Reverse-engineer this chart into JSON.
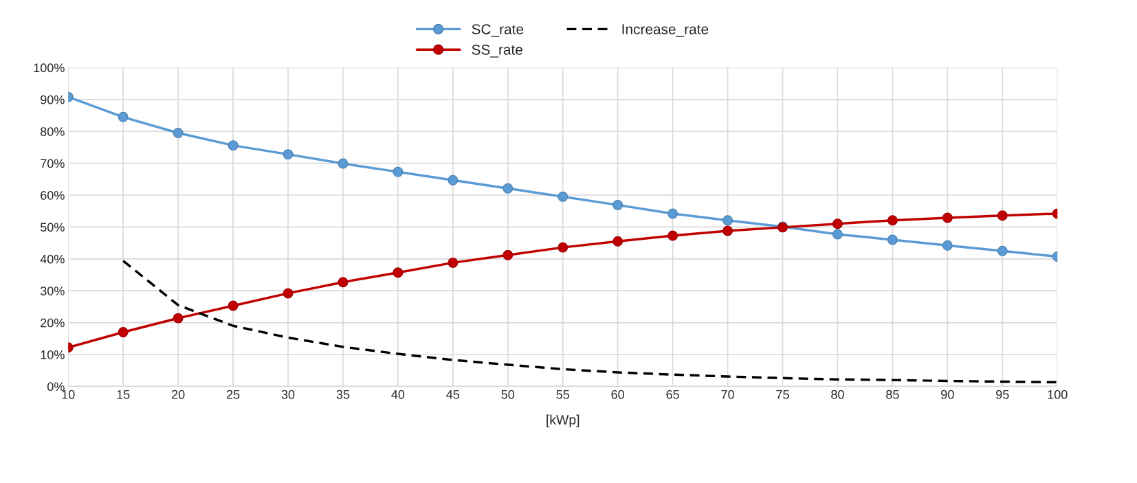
{
  "chart_data": {
    "type": "line",
    "xlabel": "[kWp]",
    "categories": [
      "10",
      "15",
      "20",
      "25",
      "30",
      "35",
      "40",
      "45",
      "50",
      "55",
      "60",
      "65",
      "70",
      "75",
      "80",
      "85",
      "90",
      "95",
      "100"
    ],
    "series": [
      {
        "name": "SC_rate",
        "color": "#5b9bd5",
        "marker": "circle",
        "line_style": "solid",
        "values": [
          90.8,
          84.5,
          79.5,
          75.6,
          72.8,
          69.9,
          67.3,
          64.7,
          62.1,
          59.5,
          56.9,
          54.2,
          52.1,
          50.1,
          47.7,
          46.0,
          44.2,
          42.5,
          40.7
        ]
      },
      {
        "name": "SS_rate",
        "color": "#c00000",
        "marker": "circle",
        "line_style": "solid",
        "values": [
          12.2,
          17.0,
          21.4,
          25.3,
          29.2,
          32.7,
          35.7,
          38.8,
          41.2,
          43.6,
          45.5,
          47.3,
          48.8,
          49.9,
          51.0,
          52.1,
          52.9,
          53.6,
          54.2
        ]
      },
      {
        "name": "Increase_rate",
        "color": "#000000",
        "marker": "none",
        "line_style": "dashed",
        "values": [
          null,
          39.4,
          25.5,
          19.0,
          15.3,
          12.4,
          10.2,
          8.3,
          6.8,
          5.4,
          4.4,
          3.7,
          3.1,
          2.6,
          2.2,
          2.0,
          1.7,
          1.5,
          1.3
        ]
      }
    ],
    "ylim": [
      0,
      100
    ],
    "yticks": [
      {
        "value": 0,
        "label": "0%"
      },
      {
        "value": 10,
        "label": "10%"
      },
      {
        "value": 20,
        "label": "20%"
      },
      {
        "value": 30,
        "label": "30%"
      },
      {
        "value": 40,
        "label": "40%"
      },
      {
        "value": 50,
        "label": "50%"
      },
      {
        "value": 60,
        "label": "60%"
      },
      {
        "value": 70,
        "label": "70%"
      },
      {
        "value": 80,
        "label": "80%"
      },
      {
        "value": 90,
        "label": "90%"
      },
      {
        "value": 100,
        "label": "100%"
      }
    ],
    "grid": true,
    "legend": "top"
  }
}
